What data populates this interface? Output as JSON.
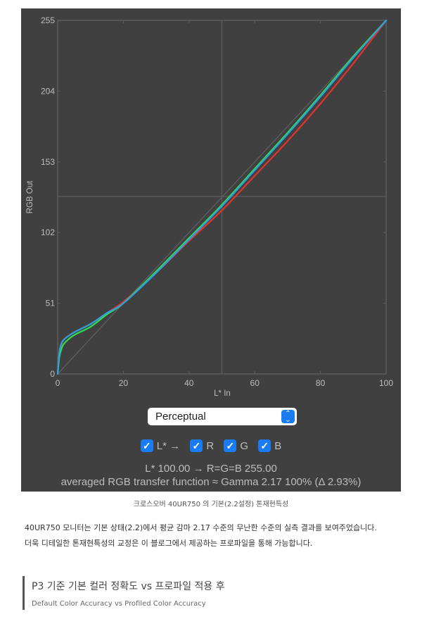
{
  "chart_data": {
    "type": "line",
    "xlabel": "L* In",
    "ylabel": "RGB Out",
    "xlim": [
      0,
      100
    ],
    "ylim": [
      0,
      255
    ],
    "x_ticks": [
      "0",
      "20",
      "40",
      "60",
      "80",
      "100"
    ],
    "y_ticks": [
      "0",
      "51",
      "102",
      "153",
      "204",
      "255"
    ],
    "crosshair": {
      "x": 50,
      "y": 128
    },
    "reference_line": "diagonal",
    "background": "#404040",
    "series": [
      {
        "name": "R",
        "color": "#e0342c",
        "x": [
          0,
          0.5,
          1,
          2,
          5,
          10,
          15,
          20,
          30,
          40,
          50,
          60,
          70,
          80,
          90,
          100
        ],
        "y": [
          0,
          15,
          20,
          25,
          30,
          36,
          44,
          52,
          73,
          96,
          118,
          143,
          168,
          195,
          224,
          255
        ]
      },
      {
        "name": "G",
        "color": "#2ee04a",
        "x": [
          0,
          0.5,
          1,
          2,
          5,
          10,
          15,
          20,
          30,
          40,
          50,
          60,
          70,
          80,
          90,
          100
        ],
        "y": [
          0,
          12,
          17,
          22,
          28,
          34,
          43,
          51,
          74,
          98,
          122,
          148,
          174,
          201,
          229,
          255
        ]
      },
      {
        "name": "B",
        "color": "#2f9fe0",
        "x": [
          0,
          0.5,
          1,
          2,
          5,
          10,
          15,
          20,
          30,
          40,
          50,
          60,
          70,
          80,
          90,
          100
        ],
        "y": [
          0,
          15,
          21,
          25,
          30,
          36,
          44,
          51,
          73,
          97,
          121,
          147,
          173,
          200,
          228,
          255
        ]
      }
    ]
  },
  "controls": {
    "rendering_intent": "Perceptual",
    "checkboxes": [
      {
        "label": "L* →",
        "checked": true
      },
      {
        "label": "R",
        "checked": true
      },
      {
        "label": "G",
        "checked": true
      },
      {
        "label": "B",
        "checked": true
      }
    ],
    "readout": "L* 100.00 → R=G=B 255.00",
    "summary": "averaged RGB transfer function ≈ Gamma 2.17 100% (Δ 2.93%)"
  },
  "caption": "크로스오버 40UR750 의 기본(2.2설정) 톤재현특성",
  "paragraph": [
    "40UR750 모니터는 기본 상태(2.2)에서 평균 감마 2.17 수준의 무난한 수준의 실측 결과를 보여주었습니다.",
    "더욱 디테일한 톤재현특성의 교정은 이 블로그에서 제공하는 프로파일을 통해 가능합니다."
  ],
  "section": {
    "title": "P3 기준 기본 컬러 정확도 vs 프로파일 적용 후",
    "subtitle": "Default Color Accuracy vs Profiled Color Accuracy"
  }
}
